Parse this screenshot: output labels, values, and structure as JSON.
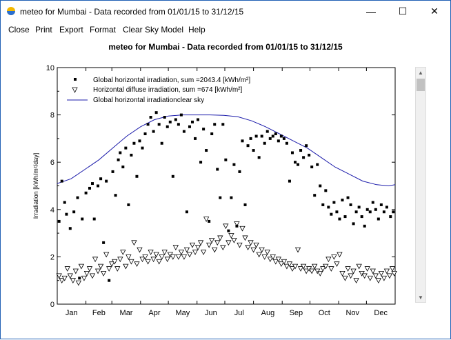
{
  "window": {
    "title": "meteo for Mumbai - Data recorded from 01/01/15 to 31/12/15",
    "minimize_glyph": "—",
    "maximize_glyph": "☐",
    "close_glyph": "✕",
    "icon": "sun-icon"
  },
  "menu": {
    "items": [
      {
        "label": "Close"
      },
      {
        "label": "Print"
      },
      {
        "label": "Export"
      },
      {
        "label": "Format"
      },
      {
        "label": "Clear Sky Model"
      },
      {
        "label": "Help"
      }
    ]
  },
  "scrollbar": {
    "up_glyph": "▲",
    "down_glyph": "▼"
  },
  "chart_data": {
    "type": "scatter",
    "title": "meteo for Mumbai -  Data recorded from 01/01/15 to 31/12/15",
    "xlabel": "",
    "ylabel": "Irradiation [kWh/m²/day]",
    "xlim": [
      0,
      365
    ],
    "ylim": [
      0,
      10
    ],
    "yticks": [
      0,
      2,
      4,
      6,
      8,
      10
    ],
    "months": [
      "Jan",
      "Feb",
      "Mar",
      "Apr",
      "May",
      "Jun",
      "Jul",
      "Aug",
      "Sep",
      "Oct",
      "Nov",
      "Dec"
    ],
    "legend_position": "top-left",
    "colors": {
      "clear_sky": "#1a1aaa",
      "points": "#000000"
    },
    "series": [
      {
        "name": "Global horizontal irradiation, sum =2043.4 [kWh/m²]",
        "marker": "square",
        "points": [
          [
            2,
            3.5
          ],
          [
            5,
            5.2
          ],
          [
            8,
            4.3
          ],
          [
            10,
            3.8
          ],
          [
            14,
            3.2
          ],
          [
            18,
            3.9
          ],
          [
            22,
            4.5
          ],
          [
            24,
            1.1
          ],
          [
            27,
            3.6
          ],
          [
            31,
            4.7
          ],
          [
            35,
            4.9
          ],
          [
            38,
            5.1
          ],
          [
            40,
            3.6
          ],
          [
            44,
            5.0
          ],
          [
            47,
            5.3
          ],
          [
            50,
            2.6
          ],
          [
            53,
            5.2
          ],
          [
            56,
            1.0
          ],
          [
            60,
            5.6
          ],
          [
            63,
            4.6
          ],
          [
            66,
            6.1
          ],
          [
            68,
            6.4
          ],
          [
            71,
            5.8
          ],
          [
            74,
            6.6
          ],
          [
            77,
            4.2
          ],
          [
            80,
            6.3
          ],
          [
            83,
            6.8
          ],
          [
            86,
            5.4
          ],
          [
            89,
            6.9
          ],
          [
            92,
            6.6
          ],
          [
            95,
            7.2
          ],
          [
            98,
            7.6
          ],
          [
            101,
            7.9
          ],
          [
            104,
            7.3
          ],
          [
            107,
            8.1
          ],
          [
            110,
            7.6
          ],
          [
            113,
            6.8
          ],
          [
            116,
            7.9
          ],
          [
            119,
            7.5
          ],
          [
            122,
            7.7
          ],
          [
            125,
            5.4
          ],
          [
            128,
            7.8
          ],
          [
            131,
            7.6
          ],
          [
            134,
            8.0
          ],
          [
            137,
            7.3
          ],
          [
            140,
            3.9
          ],
          [
            143,
            7.5
          ],
          [
            146,
            7.7
          ],
          [
            149,
            7.0
          ],
          [
            152,
            7.8
          ],
          [
            155,
            6.0
          ],
          [
            158,
            7.4
          ],
          [
            161,
            6.5
          ],
          [
            164,
            3.5
          ],
          [
            167,
            7.2
          ],
          [
            170,
            7.6
          ],
          [
            173,
            5.7
          ],
          [
            176,
            4.5
          ],
          [
            179,
            7.6
          ],
          [
            182,
            6.1
          ],
          [
            185,
            3.1
          ],
          [
            188,
            4.5
          ],
          [
            191,
            5.9
          ],
          [
            194,
            3.3
          ],
          [
            197,
            5.6
          ],
          [
            200,
            6.9
          ],
          [
            203,
            4.2
          ],
          [
            206,
            6.7
          ],
          [
            209,
            7.0
          ],
          [
            212,
            6.5
          ],
          [
            215,
            7.1
          ],
          [
            218,
            6.2
          ],
          [
            221,
            7.1
          ],
          [
            224,
            6.8
          ],
          [
            227,
            7.3
          ],
          [
            230,
            7.0
          ],
          [
            233,
            7.1
          ],
          [
            236,
            7.2
          ],
          [
            239,
            6.9
          ],
          [
            242,
            7.1
          ],
          [
            245,
            7.0
          ],
          [
            248,
            6.8
          ],
          [
            251,
            5.2
          ],
          [
            254,
            6.4
          ],
          [
            257,
            6.0
          ],
          [
            260,
            5.9
          ],
          [
            263,
            6.5
          ],
          [
            266,
            6.2
          ],
          [
            269,
            6.7
          ],
          [
            272,
            6.3
          ],
          [
            275,
            5.8
          ],
          [
            278,
            4.6
          ],
          [
            281,
            5.9
          ],
          [
            284,
            5.0
          ],
          [
            287,
            4.2
          ],
          [
            290,
            4.8
          ],
          [
            293,
            4.1
          ],
          [
            296,
            3.8
          ],
          [
            299,
            4.3
          ],
          [
            302,
            3.9
          ],
          [
            305,
            3.6
          ],
          [
            308,
            4.4
          ],
          [
            311,
            3.7
          ],
          [
            314,
            4.5
          ],
          [
            317,
            4.2
          ],
          [
            320,
            3.4
          ],
          [
            323,
            3.9
          ],
          [
            326,
            4.1
          ],
          [
            329,
            3.7
          ],
          [
            332,
            3.3
          ],
          [
            335,
            4.0
          ],
          [
            338,
            3.9
          ],
          [
            341,
            4.3
          ],
          [
            344,
            4.0
          ],
          [
            347,
            3.6
          ],
          [
            350,
            4.2
          ],
          [
            353,
            3.9
          ],
          [
            356,
            4.1
          ],
          [
            360,
            3.7
          ],
          [
            363,
            3.9
          ]
        ]
      },
      {
        "name": "Horizontal diffuse irradiation, sum =674 [kWh/m²]",
        "marker": "triangle-down",
        "points": [
          [
            2,
            1.2
          ],
          [
            5,
            1.0
          ],
          [
            8,
            1.1
          ],
          [
            11,
            1.5
          ],
          [
            14,
            1.2
          ],
          [
            17,
            1.0
          ],
          [
            20,
            1.4
          ],
          [
            23,
            0.9
          ],
          [
            26,
            1.6
          ],
          [
            29,
            1.1
          ],
          [
            32,
            1.3
          ],
          [
            35,
            1.5
          ],
          [
            38,
            1.2
          ],
          [
            41,
            1.9
          ],
          [
            44,
            1.4
          ],
          [
            47,
            1.6
          ],
          [
            50,
            1.3
          ],
          [
            53,
            2.1
          ],
          [
            56,
            1.5
          ],
          [
            59,
            1.7
          ],
          [
            62,
            1.8
          ],
          [
            65,
            1.5
          ],
          [
            68,
            1.9
          ],
          [
            71,
            2.2
          ],
          [
            74,
            1.6
          ],
          [
            77,
            2.0
          ],
          [
            80,
            1.8
          ],
          [
            83,
            2.6
          ],
          [
            86,
            1.7
          ],
          [
            89,
            2.3
          ],
          [
            92,
            1.9
          ],
          [
            95,
            2.0
          ],
          [
            98,
            1.8
          ],
          [
            101,
            2.2
          ],
          [
            104,
            1.9
          ],
          [
            107,
            2.1
          ],
          [
            110,
            1.8
          ],
          [
            113,
            2.0
          ],
          [
            116,
            2.2
          ],
          [
            119,
            1.9
          ],
          [
            122,
            2.1
          ],
          [
            125,
            2.0
          ],
          [
            128,
            2.4
          ],
          [
            131,
            2.0
          ],
          [
            134,
            2.2
          ],
          [
            137,
            2.0
          ],
          [
            140,
            2.3
          ],
          [
            143,
            2.1
          ],
          [
            146,
            2.5
          ],
          [
            149,
            2.2
          ],
          [
            152,
            2.4
          ],
          [
            155,
            2.6
          ],
          [
            158,
            2.2
          ],
          [
            161,
            3.6
          ],
          [
            164,
            2.5
          ],
          [
            167,
            2.7
          ],
          [
            170,
            2.3
          ],
          [
            173,
            2.6
          ],
          [
            176,
            2.8
          ],
          [
            179,
            2.4
          ],
          [
            182,
            3.3
          ],
          [
            185,
            2.6
          ],
          [
            188,
            2.9
          ],
          [
            191,
            2.7
          ],
          [
            194,
            3.4
          ],
          [
            197,
            2.5
          ],
          [
            200,
            3.2
          ],
          [
            203,
            2.8
          ],
          [
            206,
            2.4
          ],
          [
            209,
            2.6
          ],
          [
            212,
            2.3
          ],
          [
            215,
            2.5
          ],
          [
            218,
            2.1
          ],
          [
            221,
            2.3
          ],
          [
            224,
            2.0
          ],
          [
            227,
            2.2
          ],
          [
            230,
            1.9
          ],
          [
            233,
            2.0
          ],
          [
            236,
            1.8
          ],
          [
            239,
            1.9
          ],
          [
            242,
            1.7
          ],
          [
            245,
            1.8
          ],
          [
            248,
            1.6
          ],
          [
            251,
            1.7
          ],
          [
            254,
            1.5
          ],
          [
            257,
            1.6
          ],
          [
            260,
            2.3
          ],
          [
            263,
            1.5
          ],
          [
            266,
            1.6
          ],
          [
            269,
            1.4
          ],
          [
            272,
            1.5
          ],
          [
            275,
            1.4
          ],
          [
            278,
            1.6
          ],
          [
            281,
            1.4
          ],
          [
            284,
            1.3
          ],
          [
            287,
            1.5
          ],
          [
            290,
            1.6
          ],
          [
            293,
            1.9
          ],
          [
            296,
            1.5
          ],
          [
            299,
            2.0
          ],
          [
            302,
            1.7
          ],
          [
            305,
            2.1
          ],
          [
            308,
            1.3
          ],
          [
            311,
            1.1
          ],
          [
            314,
            1.5
          ],
          [
            317,
            1.2
          ],
          [
            320,
            1.4
          ],
          [
            323,
            1.0
          ],
          [
            326,
            1.6
          ],
          [
            329,
            1.3
          ],
          [
            332,
            1.2
          ],
          [
            335,
            1.5
          ],
          [
            338,
            1.1
          ],
          [
            341,
            1.4
          ],
          [
            344,
            1.2
          ],
          [
            347,
            1.0
          ],
          [
            350,
            1.3
          ],
          [
            353,
            1.1
          ],
          [
            356,
            1.4
          ],
          [
            359,
            1.2
          ],
          [
            362,
            1.5
          ],
          [
            364,
            1.3
          ]
        ]
      },
      {
        "name": "Global horizontal irradiationclear sky",
        "marker": "line",
        "points": [
          [
            0,
            5.1
          ],
          [
            15,
            5.3
          ],
          [
            30,
            5.7
          ],
          [
            45,
            6.1
          ],
          [
            60,
            6.6
          ],
          [
            75,
            7.1
          ],
          [
            90,
            7.5
          ],
          [
            105,
            7.8
          ],
          [
            120,
            7.95
          ],
          [
            135,
            8.0
          ],
          [
            150,
            8.0
          ],
          [
            165,
            8.0
          ],
          [
            180,
            7.98
          ],
          [
            195,
            7.92
          ],
          [
            210,
            7.75
          ],
          [
            225,
            7.5
          ],
          [
            240,
            7.2
          ],
          [
            255,
            6.9
          ],
          [
            270,
            6.6
          ],
          [
            285,
            6.2
          ],
          [
            300,
            5.8
          ],
          [
            315,
            5.5
          ],
          [
            330,
            5.2
          ],
          [
            345,
            5.05
          ],
          [
            358,
            5.0
          ],
          [
            365,
            5.05
          ]
        ]
      }
    ]
  }
}
